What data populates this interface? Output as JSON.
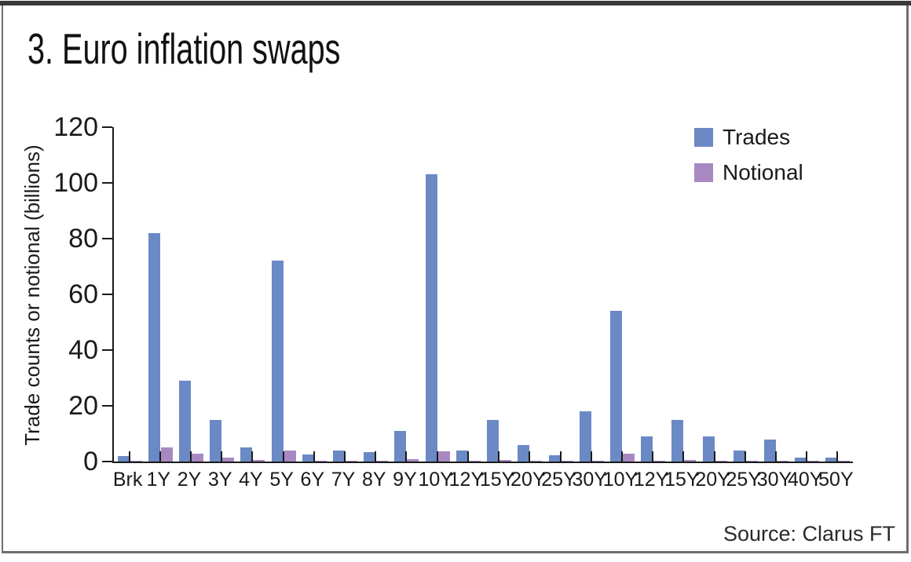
{
  "frame": {
    "title": "3. Euro inflation swaps",
    "source": "Source: Clarus FT"
  },
  "chart_data": {
    "type": "bar",
    "title": "3. Euro inflation swaps",
    "xlabel": "",
    "ylabel": "Trade counts or notional (billions)",
    "ylim": [
      0,
      120
    ],
    "yticks": [
      0,
      20,
      40,
      60,
      80,
      100,
      120
    ],
    "grid": false,
    "legend_position": "top-right",
    "source": "Source: Clarus FT",
    "categories": [
      "Brk",
      "1Y",
      "2Y",
      "3Y",
      "4Y",
      "5Y",
      "6Y",
      "7Y",
      "8Y",
      "9Y",
      "10Y",
      "12Y",
      "15Y",
      "20Y",
      "25Y",
      "30Y",
      "10Y",
      "12Y",
      "15Y",
      "20Y",
      "25Y",
      "30Y",
      "40Y",
      "50Y"
    ],
    "series": [
      {
        "name": "Trades",
        "color": "#6b89c4",
        "values": [
          2,
          82,
          29,
          15,
          5,
          72,
          2.5,
          4,
          3.3,
          11,
          103,
          4,
          15,
          6,
          2.3,
          18,
          54,
          9,
          15,
          9,
          4,
          8,
          1.4,
          1.4
        ]
      },
      {
        "name": "Notional",
        "color": "#a888c1",
        "values": [
          0.2,
          5,
          2.7,
          1.3,
          0.6,
          4,
          0.4,
          0.4,
          0.3,
          0.8,
          3.8,
          0.3,
          0.6,
          0.3,
          0.2,
          0.4,
          2.8,
          0.4,
          0.7,
          0.3,
          0.2,
          0.3,
          0.2,
          0.2
        ]
      }
    ],
    "colors": {
      "axis": "#1a1a1a",
      "frame_border": "#6f6f6f",
      "top_rule": "#3a3a3a"
    }
  }
}
